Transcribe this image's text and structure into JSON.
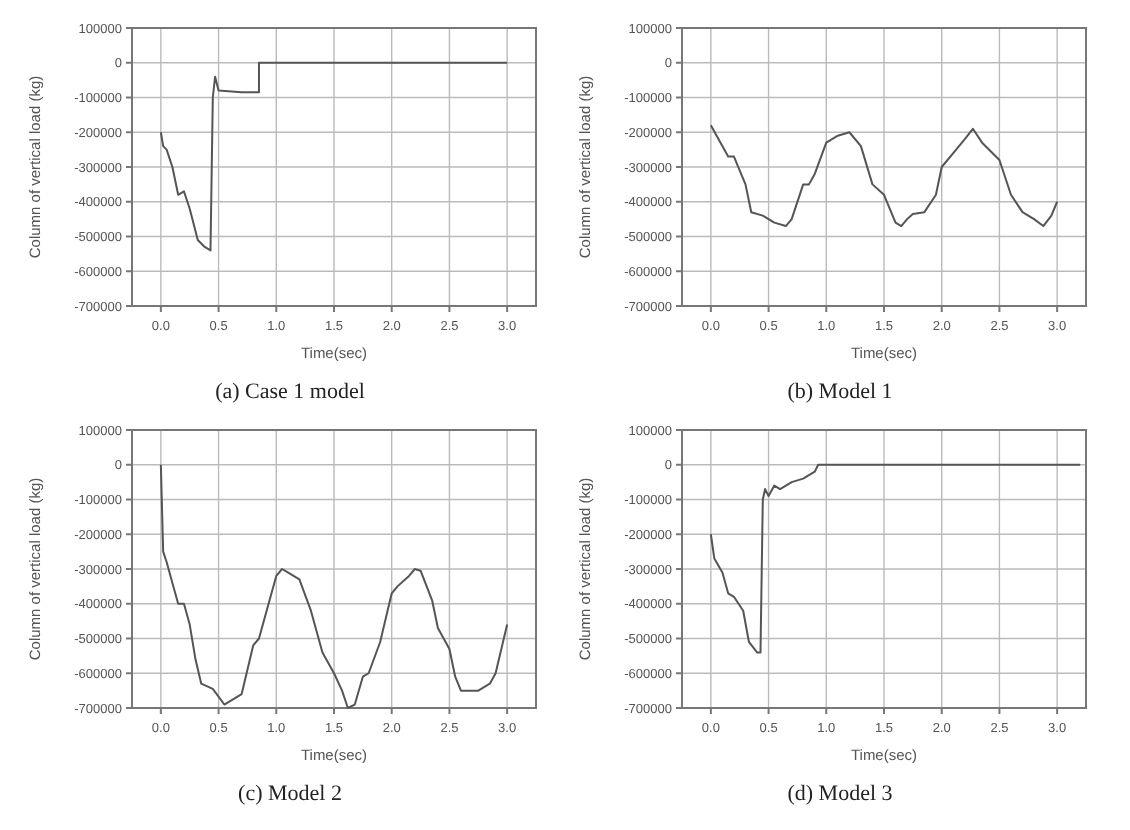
{
  "chart_data": [
    {
      "type": "line",
      "title": "(a) Case 1 model",
      "xlabel": "Time(sec)",
      "ylabel": "Column of vertical load (kg)",
      "xlim": [
        -0.25,
        3.25
      ],
      "xticks": [
        {
          "value": 0,
          "label": "0.0"
        },
        {
          "value": 0.5,
          "label": "0.5"
        },
        {
          "value": 1,
          "label": "1.0"
        },
        {
          "value": 1.5,
          "label": "1.5"
        },
        {
          "value": 2,
          "label": "2.0"
        },
        {
          "value": 2.5,
          "label": "2.5"
        },
        {
          "value": 3,
          "label": "3.0"
        }
      ],
      "ylim": [
        -700000,
        100000
      ],
      "yticks": [
        -700000,
        -600000,
        -500000,
        -400000,
        -300000,
        -200000,
        -100000,
        0,
        100000
      ],
      "grid": true,
      "series": [
        {
          "color": "#555555",
          "x": [
            0,
            0.02,
            0.05,
            0.1,
            0.15,
            0.2,
            0.25,
            0.32,
            0.38,
            0.43,
            0.45,
            0.47,
            0.5,
            0.7,
            0.85,
            0.85,
            3.0
          ],
          "values": [
            -200000,
            -240000,
            -250000,
            -300000,
            -380000,
            -370000,
            -420000,
            -510000,
            -530000,
            -540000,
            -100000,
            -40000,
            -80000,
            -85000,
            -85000,
            0,
            0
          ]
        }
      ]
    },
    {
      "type": "line",
      "title": "(b) Model 1",
      "xlabel": "Time(sec)",
      "ylabel": "Column of vertical load (kg)",
      "xlim": [
        -0.25,
        3.25
      ],
      "xticks": [
        {
          "value": 0,
          "label": "0.0"
        },
        {
          "value": 0.5,
          "label": "0.5"
        },
        {
          "value": 1,
          "label": "1.0"
        },
        {
          "value": 1.5,
          "label": "1.5"
        },
        {
          "value": 2,
          "label": "2.0"
        },
        {
          "value": 2.5,
          "label": "2.5"
        },
        {
          "value": 3,
          "label": "3.0"
        }
      ],
      "ylim": [
        -700000,
        100000
      ],
      "yticks": [
        -700000,
        -600000,
        -500000,
        -400000,
        -300000,
        -200000,
        -100000,
        0,
        100000
      ],
      "grid": true,
      "series": [
        {
          "color": "#555555",
          "x": [
            0,
            0.05,
            0.15,
            0.2,
            0.3,
            0.35,
            0.45,
            0.5,
            0.55,
            0.65,
            0.7,
            0.8,
            0.85,
            0.9,
            1.0,
            1.1,
            1.2,
            1.3,
            1.4,
            1.5,
            1.6,
            1.65,
            1.7,
            1.75,
            1.85,
            1.95,
            2.0,
            2.1,
            2.2,
            2.27,
            2.35,
            2.5,
            2.6,
            2.7,
            2.8,
            2.88,
            2.95,
            3.0
          ],
          "values": [
            -180000,
            -210000,
            -270000,
            -270000,
            -350000,
            -430000,
            -440000,
            -450000,
            -460000,
            -470000,
            -450000,
            -350000,
            -350000,
            -320000,
            -230000,
            -210000,
            -200000,
            -240000,
            -350000,
            -380000,
            -460000,
            -470000,
            -450000,
            -435000,
            -430000,
            -380000,
            -300000,
            -260000,
            -220000,
            -190000,
            -230000,
            -280000,
            -380000,
            -430000,
            -450000,
            -470000,
            -440000,
            -400000
          ]
        }
      ]
    },
    {
      "type": "line",
      "title": "(c) Model 2",
      "xlabel": "Time(sec)",
      "ylabel": "Column of vertical load (kg)",
      "xlim": [
        -0.25,
        3.25
      ],
      "xticks": [
        {
          "value": 0,
          "label": "0.0"
        },
        {
          "value": 0.5,
          "label": "0.5"
        },
        {
          "value": 1,
          "label": "1.0"
        },
        {
          "value": 1.5,
          "label": "1.5"
        },
        {
          "value": 2,
          "label": "2.0"
        },
        {
          "value": 2.5,
          "label": "2.5"
        },
        {
          "value": 3,
          "label": "3.0"
        }
      ],
      "ylim": [
        -700000,
        100000
      ],
      "yticks": [
        -700000,
        -600000,
        -500000,
        -400000,
        -300000,
        -200000,
        -100000,
        0,
        100000
      ],
      "grid": true,
      "series": [
        {
          "color": "#555555",
          "x": [
            0,
            0.02,
            0.05,
            0.1,
            0.15,
            0.2,
            0.25,
            0.3,
            0.35,
            0.45,
            0.55,
            0.6,
            0.7,
            0.8,
            0.85,
            0.95,
            1.0,
            1.05,
            1.1,
            1.2,
            1.3,
            1.4,
            1.5,
            1.57,
            1.62,
            1.68,
            1.75,
            1.8,
            1.9,
            2.0,
            2.05,
            2.15,
            2.2,
            2.25,
            2.35,
            2.4,
            2.5,
            2.55,
            2.6,
            2.75,
            2.85,
            2.9,
            3.0
          ],
          "values": [
            0,
            -250000,
            -280000,
            -340000,
            -400000,
            -400000,
            -460000,
            -560000,
            -630000,
            -645000,
            -690000,
            -680000,
            -660000,
            -520000,
            -500000,
            -380000,
            -320000,
            -300000,
            -310000,
            -330000,
            -420000,
            -540000,
            -600000,
            -650000,
            -700000,
            -690000,
            -610000,
            -600000,
            -510000,
            -370000,
            -350000,
            -320000,
            -300000,
            -305000,
            -390000,
            -470000,
            -530000,
            -610000,
            -650000,
            -650000,
            -630000,
            -600000,
            -460000
          ]
        }
      ]
    },
    {
      "type": "line",
      "title": "(d) Model 3",
      "xlabel": "Time(sec)",
      "ylabel": "Column of vertical load (kg)",
      "xlim": [
        -0.25,
        3.25
      ],
      "xticks": [
        {
          "value": 0,
          "label": "0.0"
        },
        {
          "value": 0.5,
          "label": "0.5"
        },
        {
          "value": 1,
          "label": "1.0"
        },
        {
          "value": 1.5,
          "label": "1.5"
        },
        {
          "value": 2,
          "label": "2.0"
        },
        {
          "value": 2.5,
          "label": "2.5"
        },
        {
          "value": 3,
          "label": "3.0"
        }
      ],
      "ylim": [
        -700000,
        100000
      ],
      "yticks": [
        -700000,
        -600000,
        -500000,
        -400000,
        -300000,
        -200000,
        -100000,
        0,
        100000
      ],
      "grid": true,
      "series": [
        {
          "color": "#555555",
          "x": [
            0,
            0.03,
            0.1,
            0.15,
            0.2,
            0.28,
            0.33,
            0.4,
            0.43,
            0.45,
            0.47,
            0.5,
            0.55,
            0.6,
            0.7,
            0.8,
            0.9,
            0.93,
            3.2
          ],
          "values": [
            -200000,
            -270000,
            -310000,
            -370000,
            -380000,
            -420000,
            -510000,
            -540000,
            -540000,
            -100000,
            -70000,
            -90000,
            -60000,
            -70000,
            -50000,
            -40000,
            -20000,
            0,
            0
          ]
        }
      ]
    }
  ]
}
